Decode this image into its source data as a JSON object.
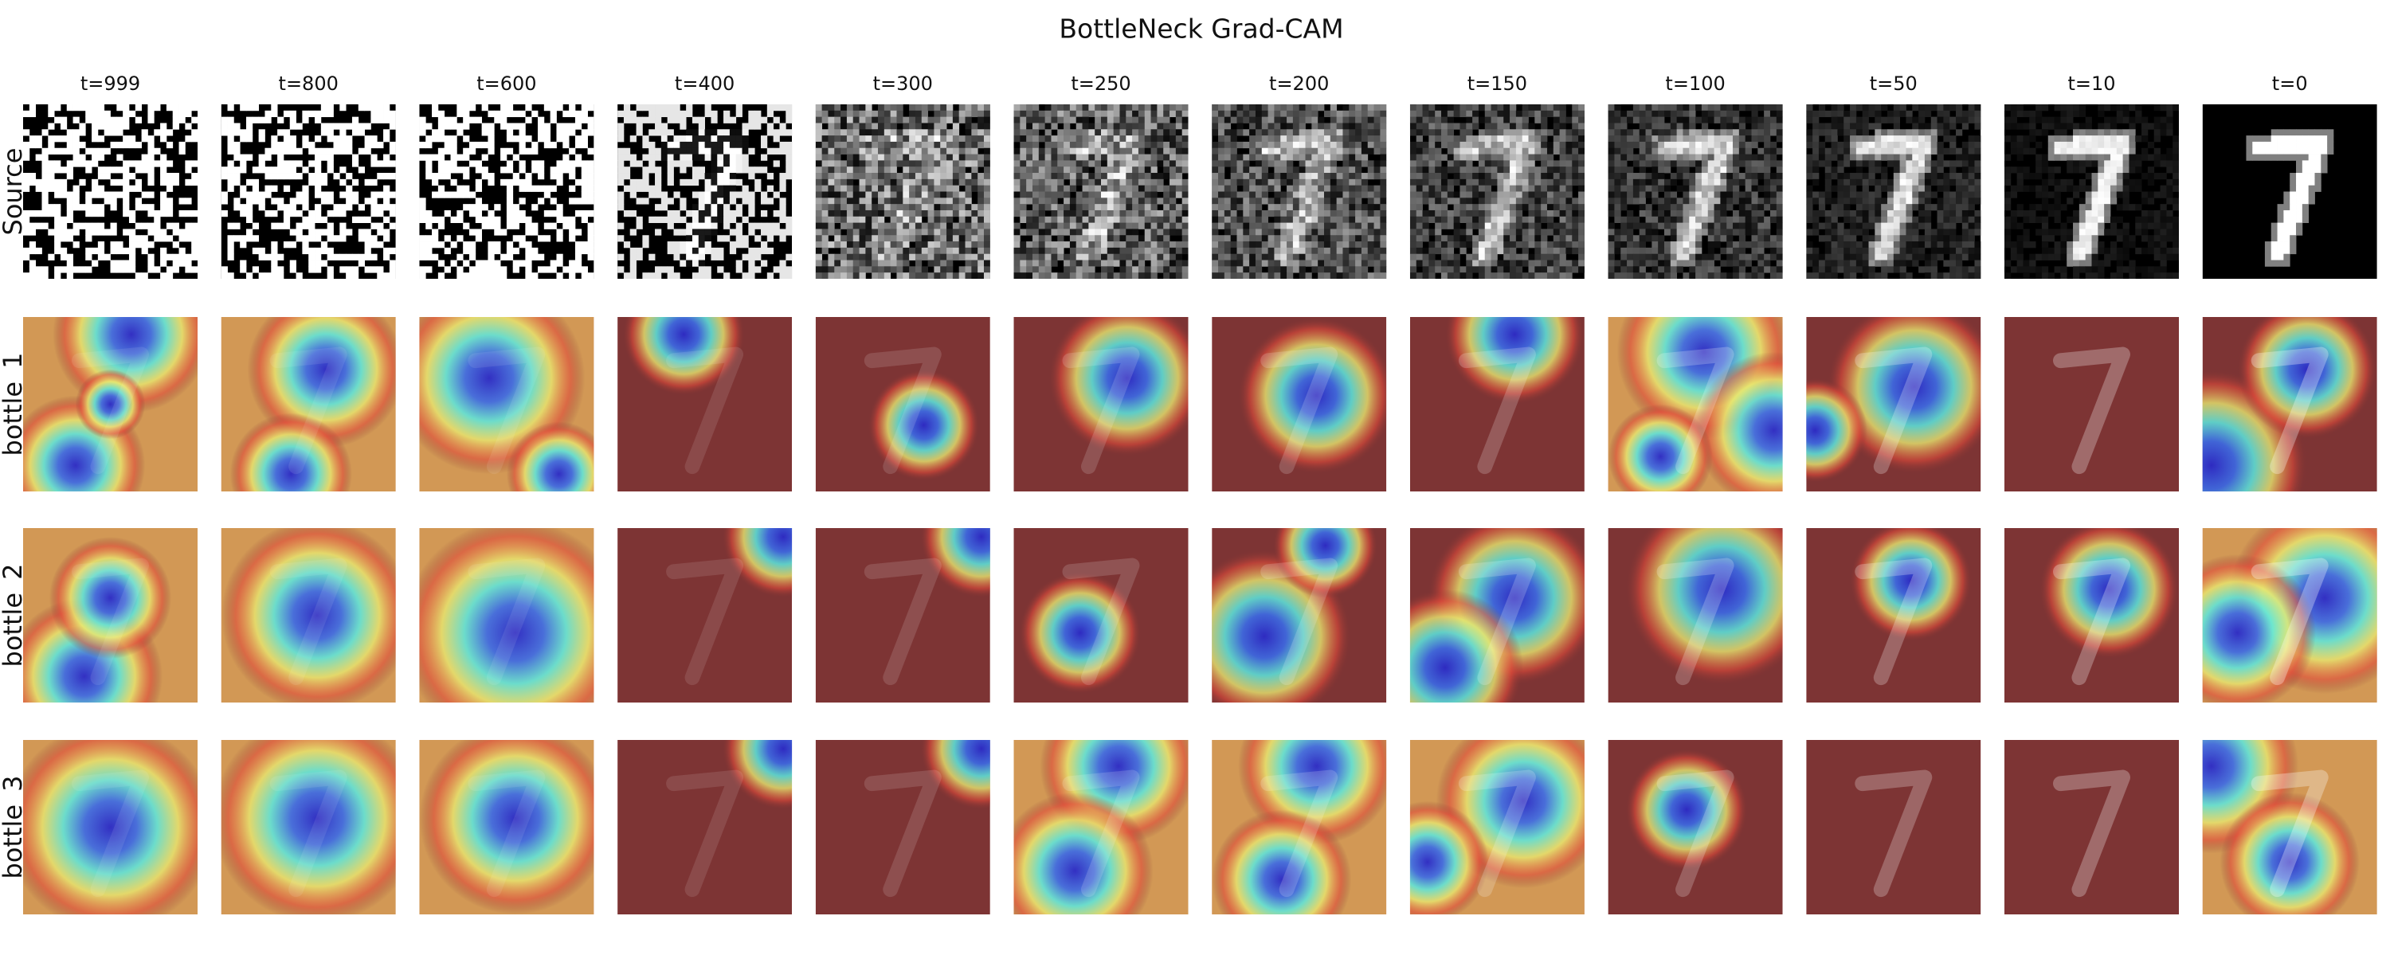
{
  "title": "BottleNeck Grad-CAM",
  "columns": [
    "t=999",
    "t=800",
    "t=600",
    "t=400",
    "t=300",
    "t=250",
    "t=200",
    "t=150",
    "t=100",
    "t=50",
    "t=10",
    "t=0"
  ],
  "rows": [
    "Source",
    "bottle_1",
    "bottle_2",
    "bottle_3"
  ]
}
